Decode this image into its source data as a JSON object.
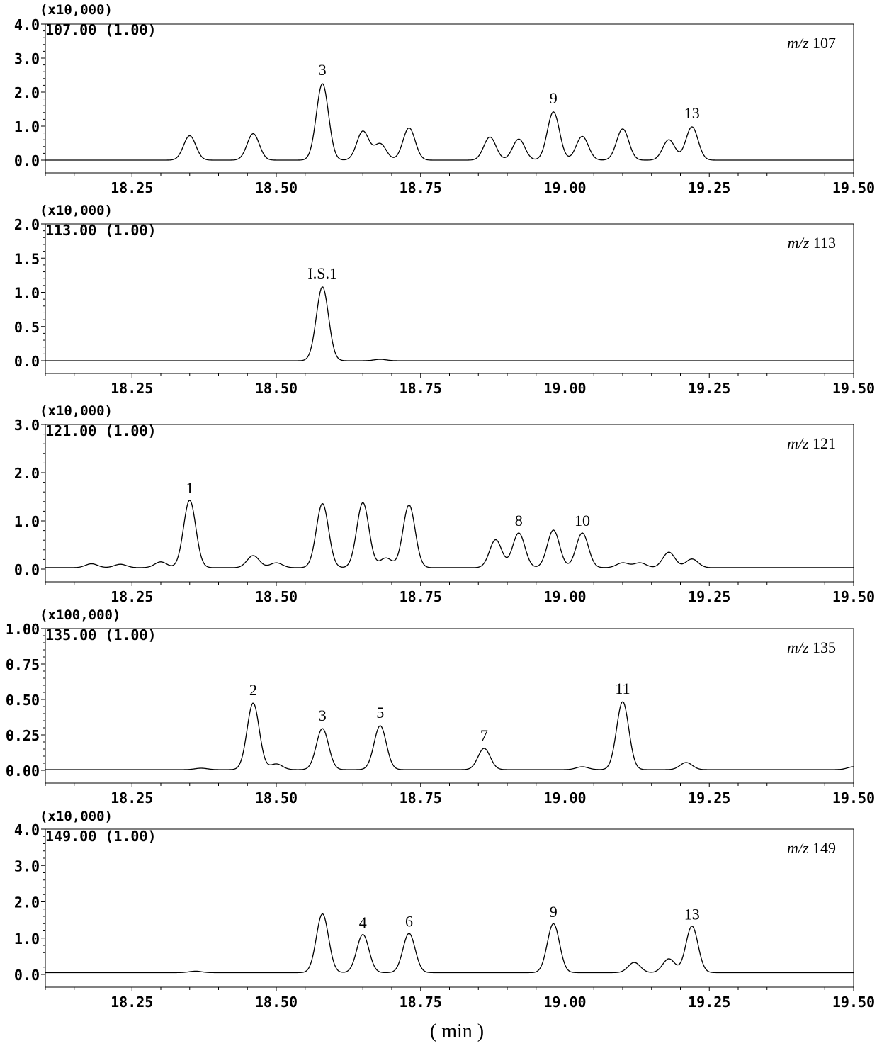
{
  "x_unit_label": "( min )",
  "chart_data": [
    {
      "type": "line",
      "scale_label": "(x10,000)",
      "ion_label": "107.00 (1.00)",
      "mz_prefix": "m/z",
      "mz_value": "107",
      "xlim": [
        18.1,
        19.5
      ],
      "ylim": [
        0,
        4.0
      ],
      "x_ticks": [
        "18.25",
        "18.50",
        "18.75",
        "19.00",
        "19.25",
        "19.50"
      ],
      "y_ticks": [
        "0.0",
        "1.0",
        "2.0",
        "3.0",
        "4.0"
      ],
      "baseline": 0.0,
      "peaks": [
        {
          "rt": 18.35,
          "height": 0.72,
          "label": ""
        },
        {
          "rt": 18.46,
          "height": 0.78,
          "label": ""
        },
        {
          "rt": 18.58,
          "height": 2.25,
          "label": "3"
        },
        {
          "rt": 18.65,
          "height": 0.85,
          "label": ""
        },
        {
          "rt": 18.68,
          "height": 0.48,
          "label": ""
        },
        {
          "rt": 18.73,
          "height": 0.95,
          "label": ""
        },
        {
          "rt": 18.87,
          "height": 0.68,
          "label": ""
        },
        {
          "rt": 18.92,
          "height": 0.62,
          "label": ""
        },
        {
          "rt": 18.98,
          "height": 1.42,
          "label": "9"
        },
        {
          "rt": 19.03,
          "height": 0.7,
          "label": ""
        },
        {
          "rt": 19.1,
          "height": 0.92,
          "label": ""
        },
        {
          "rt": 19.18,
          "height": 0.6,
          "label": ""
        },
        {
          "rt": 19.22,
          "height": 0.98,
          "label": "13"
        }
      ]
    },
    {
      "type": "line",
      "scale_label": "(x10,000)",
      "ion_label": "113.00 (1.00)",
      "mz_prefix": "m/z",
      "mz_value": "113",
      "xlim": [
        18.1,
        19.5
      ],
      "ylim": [
        0,
        2.0
      ],
      "x_ticks": [
        "18.25",
        "18.50",
        "18.75",
        "19.00",
        "19.25",
        "19.50"
      ],
      "y_ticks": [
        "0.0",
        "0.5",
        "1.0",
        "1.5",
        "2.0"
      ],
      "baseline": 0.0,
      "peaks": [
        {
          "rt": 18.58,
          "height": 1.08,
          "label": "I.S.1"
        },
        {
          "rt": 18.68,
          "height": 0.02,
          "label": ""
        }
      ]
    },
    {
      "type": "line",
      "scale_label": "(x10,000)",
      "ion_label": "121.00 (1.00)",
      "mz_prefix": "m/z",
      "mz_value": "121",
      "xlim": [
        18.1,
        19.5
      ],
      "ylim": [
        0,
        3.0
      ],
      "x_ticks": [
        "18.25",
        "18.50",
        "18.75",
        "19.00",
        "19.25",
        "19.50"
      ],
      "y_ticks": [
        "0.0",
        "1.0",
        "2.0",
        "3.0"
      ],
      "baseline": 0.03,
      "peaks": [
        {
          "rt": 18.18,
          "height": 0.08,
          "label": ""
        },
        {
          "rt": 18.23,
          "height": 0.07,
          "label": ""
        },
        {
          "rt": 18.3,
          "height": 0.12,
          "label": ""
        },
        {
          "rt": 18.35,
          "height": 1.4,
          "label": "1"
        },
        {
          "rt": 18.46,
          "height": 0.25,
          "label": ""
        },
        {
          "rt": 18.5,
          "height": 0.1,
          "label": ""
        },
        {
          "rt": 18.58,
          "height": 1.33,
          "label": ""
        },
        {
          "rt": 18.65,
          "height": 1.35,
          "label": ""
        },
        {
          "rt": 18.69,
          "height": 0.2,
          "label": ""
        },
        {
          "rt": 18.73,
          "height": 1.3,
          "label": ""
        },
        {
          "rt": 18.88,
          "height": 0.58,
          "label": ""
        },
        {
          "rt": 18.92,
          "height": 0.72,
          "label": "8"
        },
        {
          "rt": 18.98,
          "height": 0.78,
          "label": ""
        },
        {
          "rt": 19.03,
          "height": 0.72,
          "label": "10"
        },
        {
          "rt": 19.1,
          "height": 0.1,
          "label": ""
        },
        {
          "rt": 19.13,
          "height": 0.1,
          "label": ""
        },
        {
          "rt": 19.18,
          "height": 0.32,
          "label": ""
        },
        {
          "rt": 19.22,
          "height": 0.18,
          "label": ""
        }
      ]
    },
    {
      "type": "line",
      "scale_label": "(x100,000)",
      "ion_label": "135.00 (1.00)",
      "mz_prefix": "m/z",
      "mz_value": "135",
      "xlim": [
        18.1,
        19.5
      ],
      "ylim": [
        0,
        1.0
      ],
      "x_ticks": [
        "18.25",
        "18.50",
        "18.75",
        "19.00",
        "19.25",
        "19.50"
      ],
      "y_ticks": [
        "0.00",
        "0.25",
        "0.50",
        "0.75",
        "1.00"
      ],
      "baseline": 0.005,
      "peaks": [
        {
          "rt": 18.37,
          "height": 0.01,
          "label": ""
        },
        {
          "rt": 18.46,
          "height": 0.47,
          "label": "2"
        },
        {
          "rt": 18.5,
          "height": 0.04,
          "label": ""
        },
        {
          "rt": 18.58,
          "height": 0.29,
          "label": "3"
        },
        {
          "rt": 18.68,
          "height": 0.31,
          "label": "5"
        },
        {
          "rt": 18.86,
          "height": 0.15,
          "label": "7"
        },
        {
          "rt": 19.03,
          "height": 0.02,
          "label": ""
        },
        {
          "rt": 19.1,
          "height": 0.48,
          "label": "11"
        },
        {
          "rt": 19.21,
          "height": 0.05,
          "label": ""
        },
        {
          "rt": 19.5,
          "height": 0.02,
          "label": ""
        }
      ]
    },
    {
      "type": "line",
      "scale_label": "(x10,000)",
      "ion_label": "149.00 (1.00)",
      "mz_prefix": "m/z",
      "mz_value": "149",
      "xlim": [
        18.1,
        19.5
      ],
      "ylim": [
        0,
        4.0
      ],
      "x_ticks": [
        "18.25",
        "18.50",
        "18.75",
        "19.00",
        "19.25",
        "19.50"
      ],
      "y_ticks": [
        "0.0",
        "1.0",
        "2.0",
        "3.0",
        "4.0"
      ],
      "baseline": 0.05,
      "peaks": [
        {
          "rt": 18.36,
          "height": 0.04,
          "label": ""
        },
        {
          "rt": 18.58,
          "height": 1.62,
          "label": ""
        },
        {
          "rt": 18.65,
          "height": 1.05,
          "label": "4"
        },
        {
          "rt": 18.73,
          "height": 1.08,
          "label": "6"
        },
        {
          "rt": 18.98,
          "height": 1.35,
          "label": "9"
        },
        {
          "rt": 19.12,
          "height": 0.28,
          "label": ""
        },
        {
          "rt": 19.18,
          "height": 0.38,
          "label": ""
        },
        {
          "rt": 19.22,
          "height": 1.28,
          "label": "13"
        }
      ]
    }
  ]
}
